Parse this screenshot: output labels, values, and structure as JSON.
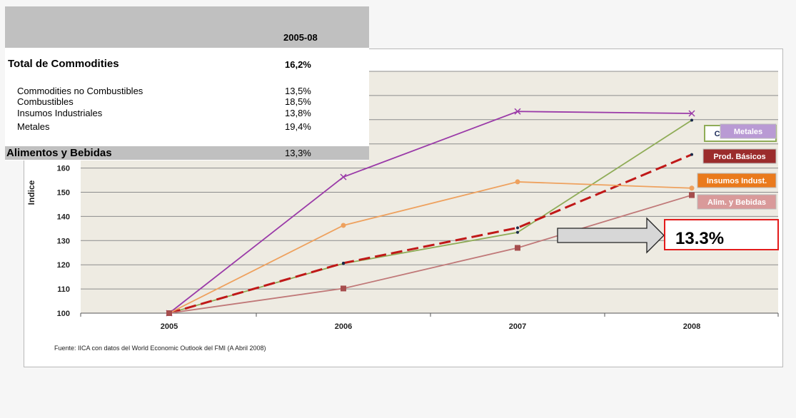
{
  "table": {
    "period": "2005-08",
    "total": {
      "label": "Total de Commodities",
      "value": "16,2%"
    },
    "rows": [
      {
        "label": "Commodities no Combustibles",
        "value": "13,5%"
      },
      {
        "label": "Combustibles",
        "value": "18,5%"
      },
      {
        "label": "Insumos Industriales",
        "value": "13,8%"
      },
      {
        "label": "Metales",
        "value": "19,4%"
      }
    ],
    "footer": {
      "label": "Alimentos y Bebidas",
      "value": "13,3%"
    }
  },
  "callout": {
    "text": "13.3%"
  },
  "chart_data": {
    "type": "line",
    "x": [
      "2005",
      "2006",
      "2007",
      "2008"
    ],
    "ylabel": "Indice",
    "ylim": [
      100,
      200
    ],
    "yticks": [
      100,
      110,
      120,
      130,
      140,
      150,
      160
    ],
    "source": "Fuente:  IICA con datos del World Economic Outlook  del FMI (A Abril 2008)",
    "grid": true,
    "background": "#eeebe2",
    "series": [
      {
        "name": "Metales",
        "values": [
          100,
          156.3,
          183.4,
          182.6
        ],
        "color": "#9a3aa8",
        "dashed": false,
        "marker": "x",
        "legend_bg": "#b99ad4"
      },
      {
        "name": "Combustibles",
        "values": [
          100,
          120.5,
          133.4,
          179.8
        ],
        "color": "#8fac57",
        "dashed": false,
        "marker": "dot",
        "legend_bg": "#ffffff"
      },
      {
        "name": "Prod. Básicos",
        "values": [
          100,
          120.7,
          135.3,
          165.6
        ],
        "color": "#c01818",
        "dashed": true,
        "marker": "dot",
        "legend_bg": "#9b2c2c"
      },
      {
        "name": "Insumos Indust.",
        "values": [
          100,
          136.3,
          154.3,
          151.7
        ],
        "color": "#eea15e",
        "dashed": false,
        "marker": "circle",
        "legend_bg": "#ea7a1c"
      },
      {
        "name": "Alim. y Bebidas",
        "values": [
          100,
          110.2,
          127,
          148.8
        ],
        "color": "#c07878",
        "dashed": false,
        "marker": "square",
        "legend_bg": "#d99a9a"
      }
    ]
  }
}
